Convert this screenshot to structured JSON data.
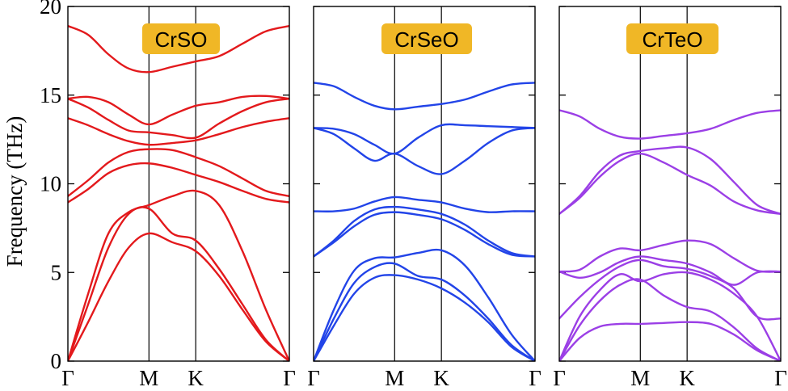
{
  "ylabel": "Frequency (THz)",
  "ylim": [
    0,
    20
  ],
  "yticks": [
    "0",
    "5",
    "10",
    "15",
    "20"
  ],
  "title_badge_color": "#f0b726",
  "chart_data": [
    {
      "type": "line",
      "title": "CrSO",
      "color": "#e3191c",
      "xticks": [
        "Γ",
        "M",
        "K",
        "Γ"
      ],
      "kpath": [
        0,
        1,
        1.577,
        2.732
      ],
      "ylim": [
        0,
        20
      ],
      "series": [
        {
          "x": [
            0,
            0.25,
            0.5,
            0.75,
            1,
            1.289,
            1.577,
            1.866,
            2.154,
            2.443,
            2.732
          ],
          "values": [
            18.9,
            18.4,
            17.3,
            16.5,
            16.3,
            16.6,
            16.9,
            17.2,
            17.9,
            18.6,
            18.9
          ]
        },
        {
          "x": [
            0,
            0.25,
            0.5,
            0.75,
            1,
            1.289,
            1.577,
            1.866,
            2.154,
            2.443,
            2.732
          ],
          "values": [
            14.8,
            14.9,
            14.6,
            13.9,
            13.35,
            13.9,
            14.4,
            14.6,
            14.9,
            14.95,
            14.8
          ]
        },
        {
          "x": [
            0,
            0.25,
            0.5,
            0.75,
            1,
            1.289,
            1.577,
            1.866,
            2.154,
            2.443,
            2.732
          ],
          "values": [
            14.8,
            14.3,
            13.6,
            13.0,
            12.9,
            12.75,
            12.6,
            13.4,
            14.1,
            14.6,
            14.8
          ]
        },
        {
          "x": [
            0,
            0.25,
            0.5,
            0.75,
            1,
            1.289,
            1.577,
            1.866,
            2.154,
            2.443,
            2.732
          ],
          "values": [
            13.7,
            13.3,
            12.8,
            12.4,
            12.2,
            12.3,
            12.45,
            12.8,
            13.2,
            13.5,
            13.7
          ]
        },
        {
          "x": [
            0,
            0.25,
            0.5,
            0.75,
            1,
            1.289,
            1.577,
            1.866,
            2.154,
            2.443,
            2.732
          ],
          "values": [
            9.3,
            10.2,
            11.2,
            11.8,
            11.95,
            11.9,
            11.5,
            11.0,
            10.3,
            9.6,
            9.3
          ]
        },
        {
          "x": [
            0,
            0.25,
            0.5,
            0.75,
            1,
            1.289,
            1.577,
            1.866,
            2.154,
            2.443,
            2.732
          ],
          "values": [
            8.95,
            9.7,
            10.6,
            11.05,
            11.15,
            10.9,
            10.5,
            10.1,
            9.6,
            9.15,
            8.95
          ]
        },
        {
          "x": [
            0,
            0.25,
            0.5,
            0.75,
            1,
            1.289,
            1.577,
            1.866,
            2.154,
            2.443,
            2.732
          ],
          "values": [
            0,
            3.8,
            7.2,
            8.4,
            8.8,
            9.3,
            9.6,
            8.8,
            6.2,
            2.9,
            0
          ]
        },
        {
          "x": [
            0,
            0.25,
            0.5,
            0.75,
            1,
            1.289,
            1.577,
            1.866,
            2.154,
            2.443,
            2.732
          ],
          "values": [
            0,
            3.2,
            6.4,
            8.3,
            8.6,
            7.2,
            6.8,
            5.2,
            3.2,
            1.2,
            0
          ]
        },
        {
          "x": [
            0,
            0.25,
            0.5,
            0.75,
            1,
            1.289,
            1.577,
            1.866,
            2.154,
            2.443,
            2.732
          ],
          "values": [
            0,
            2.2,
            4.5,
            6.4,
            7.2,
            6.7,
            6.2,
            4.8,
            2.9,
            1.1,
            0
          ]
        }
      ]
    },
    {
      "type": "line",
      "title": "CrSeO",
      "color": "#2244e8",
      "xticks": [
        "Γ",
        "M",
        "K",
        "Γ"
      ],
      "kpath": [
        0,
        1,
        1.577,
        2.732
      ],
      "ylim": [
        0,
        20
      ],
      "series": [
        {
          "x": [
            0,
            0.25,
            0.5,
            0.75,
            1,
            1.289,
            1.577,
            1.866,
            2.154,
            2.443,
            2.732
          ],
          "values": [
            15.7,
            15.5,
            14.9,
            14.4,
            14.2,
            14.35,
            14.5,
            14.75,
            15.2,
            15.6,
            15.7
          ]
        },
        {
          "x": [
            0,
            0.25,
            0.5,
            0.75,
            1,
            1.289,
            1.577,
            1.866,
            2.154,
            2.443,
            2.732
          ],
          "values": [
            13.15,
            13.1,
            12.8,
            12.2,
            11.7,
            12.6,
            13.3,
            13.3,
            13.25,
            13.2,
            13.15
          ]
        },
        {
          "x": [
            0,
            0.25,
            0.5,
            0.75,
            1,
            1.289,
            1.577,
            1.866,
            2.154,
            2.443,
            2.732
          ],
          "values": [
            13.15,
            12.8,
            12.0,
            11.3,
            11.7,
            11.0,
            10.55,
            11.3,
            12.3,
            13.0,
            13.15
          ]
        },
        {
          "x": [
            0,
            0.25,
            0.5,
            0.75,
            1,
            1.289,
            1.577,
            1.866,
            2.154,
            2.443,
            2.732
          ],
          "values": [
            8.45,
            8.45,
            8.6,
            9.0,
            9.25,
            9.1,
            8.95,
            8.6,
            8.4,
            8.45,
            8.45
          ]
        },
        {
          "x": [
            0,
            0.25,
            0.5,
            0.75,
            1,
            1.289,
            1.577,
            1.866,
            2.154,
            2.443,
            2.732
          ],
          "values": [
            5.9,
            6.8,
            7.9,
            8.55,
            8.7,
            8.55,
            8.3,
            7.7,
            6.8,
            6.1,
            5.9
          ]
        },
        {
          "x": [
            0,
            0.25,
            0.5,
            0.75,
            1,
            1.289,
            1.577,
            1.866,
            2.154,
            2.443,
            2.732
          ],
          "values": [
            5.9,
            6.7,
            7.6,
            8.25,
            8.4,
            8.25,
            8.0,
            7.4,
            6.6,
            6.0,
            5.9
          ]
        },
        {
          "x": [
            0,
            0.25,
            0.5,
            0.75,
            1,
            1.289,
            1.577,
            1.866,
            2.154,
            2.443,
            2.732
          ],
          "values": [
            0,
            2.9,
            5.1,
            5.8,
            5.85,
            6.1,
            6.25,
            5.4,
            3.6,
            1.5,
            0
          ]
        },
        {
          "x": [
            0,
            0.25,
            0.5,
            0.75,
            1,
            1.289,
            1.577,
            1.866,
            2.154,
            2.443,
            2.732
          ],
          "values": [
            0,
            2.4,
            4.4,
            5.3,
            5.5,
            4.8,
            4.6,
            3.7,
            2.4,
            0.9,
            0
          ]
        },
        {
          "x": [
            0,
            0.25,
            0.5,
            0.75,
            1,
            1.289,
            1.577,
            1.866,
            2.154,
            2.443,
            2.732
          ],
          "values": [
            0,
            2.0,
            3.8,
            4.7,
            4.85,
            4.6,
            4.1,
            3.3,
            2.2,
            0.8,
            0
          ]
        }
      ]
    },
    {
      "type": "line",
      "title": "CrTeO",
      "color": "#9b3fe6",
      "xticks": [
        "Γ",
        "M",
        "K",
        "Γ"
      ],
      "kpath": [
        0,
        1,
        1.577,
        2.732
      ],
      "ylim": [
        0,
        20
      ],
      "series": [
        {
          "x": [
            0,
            0.25,
            0.5,
            0.75,
            1,
            1.289,
            1.577,
            1.866,
            2.154,
            2.443,
            2.732
          ],
          "values": [
            14.15,
            13.8,
            13.1,
            12.65,
            12.55,
            12.7,
            12.85,
            13.1,
            13.6,
            14.0,
            14.15
          ]
        },
        {
          "x": [
            0,
            0.25,
            0.5,
            0.75,
            1,
            1.289,
            1.577,
            1.866,
            2.154,
            2.443,
            2.732
          ],
          "values": [
            8.3,
            9.3,
            10.7,
            11.6,
            11.85,
            12.0,
            12.05,
            11.4,
            10.1,
            8.8,
            8.3
          ]
        },
        {
          "x": [
            0,
            0.25,
            0.5,
            0.75,
            1,
            1.289,
            1.577,
            1.866,
            2.154,
            2.443,
            2.732
          ],
          "values": [
            8.3,
            9.2,
            10.4,
            11.3,
            11.7,
            11.2,
            10.5,
            9.9,
            9.0,
            8.5,
            8.3
          ]
        },
        {
          "x": [
            0,
            0.25,
            0.5,
            0.75,
            1,
            1.289,
            1.577,
            1.866,
            2.154,
            2.443,
            2.732
          ],
          "values": [
            5.05,
            5.15,
            5.9,
            6.35,
            6.25,
            6.55,
            6.8,
            6.6,
            5.8,
            5.1,
            5.05
          ]
        },
        {
          "x": [
            0,
            0.25,
            0.5,
            0.75,
            1,
            1.289,
            1.577,
            1.866,
            2.154,
            2.443,
            2.732
          ],
          "values": [
            5.05,
            4.7,
            5.0,
            5.6,
            5.9,
            5.7,
            5.5,
            5.0,
            4.3,
            5.0,
            5.05
          ]
        },
        {
          "x": [
            0,
            0.25,
            0.5,
            0.75,
            1,
            1.289,
            1.577,
            1.866,
            2.154,
            2.443,
            2.732
          ],
          "values": [
            2.4,
            3.6,
            4.6,
            5.35,
            5.7,
            5.35,
            5.2,
            4.8,
            4.1,
            2.5,
            2.4
          ]
        },
        {
          "x": [
            0,
            0.25,
            0.5,
            0.75,
            1,
            1.289,
            1.577,
            1.866,
            2.154,
            2.443,
            2.732
          ],
          "values": [
            0,
            2.5,
            4.0,
            4.9,
            4.5,
            4.9,
            5.0,
            4.6,
            3.8,
            2.5,
            0
          ]
        },
        {
          "x": [
            0,
            0.25,
            0.5,
            0.75,
            1,
            1.289,
            1.577,
            1.866,
            2.154,
            2.443,
            2.732
          ],
          "values": [
            0,
            2.0,
            3.4,
            4.3,
            4.6,
            3.7,
            3.05,
            2.8,
            1.9,
            0.7,
            0
          ]
        },
        {
          "x": [
            0,
            0.25,
            0.5,
            0.75,
            1,
            1.289,
            1.577,
            1.866,
            2.154,
            2.443,
            2.732
          ],
          "values": [
            0,
            1.3,
            1.95,
            2.1,
            2.1,
            2.15,
            2.2,
            2.1,
            1.5,
            0.6,
            0
          ]
        }
      ]
    }
  ]
}
